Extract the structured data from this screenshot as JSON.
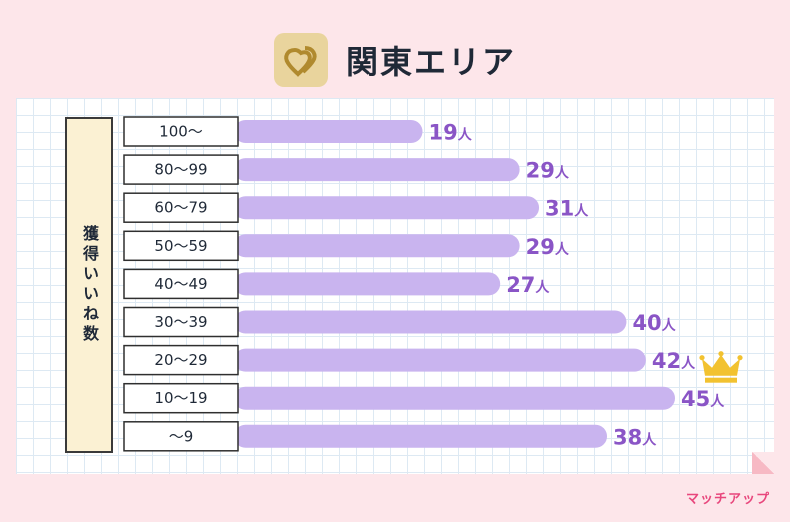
{
  "header": {
    "title": "関東エリア"
  },
  "brand": "マッチアップ",
  "chart_data": {
    "type": "bar",
    "orientation": "horizontal",
    "title": "関東エリア",
    "ylabel": "獲得いいね数",
    "unit": "人",
    "categories": [
      "100〜",
      "80〜99",
      "60〜79",
      "50〜59",
      "40〜49",
      "30〜39",
      "20〜29",
      "10〜19",
      "〜9"
    ],
    "values": [
      19,
      29,
      31,
      29,
      27,
      40,
      42,
      45,
      38
    ],
    "highlight_category": "10〜19",
    "highlight_icon": "crown-icon",
    "xlim": [
      0,
      45
    ],
    "grid": true,
    "colors": {
      "bar": "#c9b4ef",
      "value_label": "#8a55c6",
      "crown": "#f2c230"
    }
  }
}
